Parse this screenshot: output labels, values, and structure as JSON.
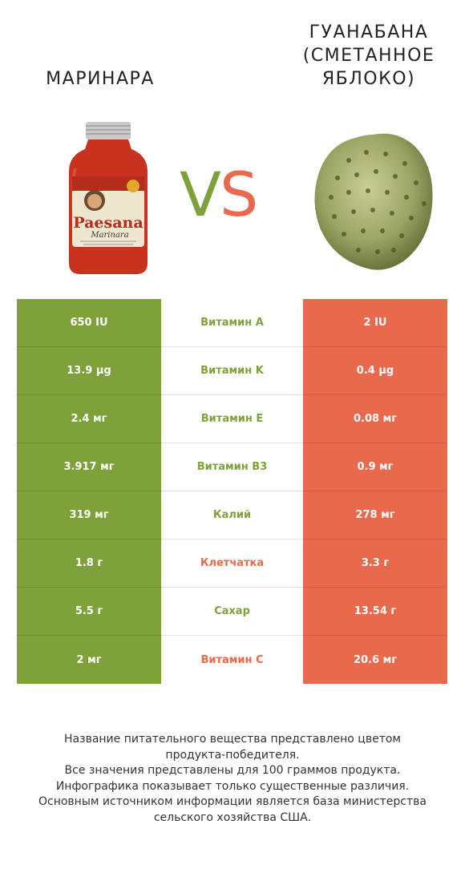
{
  "left_product": {
    "name": "МАРИНАРА",
    "color": "#7ea13a"
  },
  "right_product": {
    "name_lines": [
      "ГУАНАБАНА",
      "(СМЕТАННОЕ",
      "ЯБЛОКО)"
    ],
    "color": "#e8694b"
  },
  "vs": {
    "v": "V",
    "s": "S"
  },
  "jar_label": {
    "brand": "Paesana",
    "sub": "Marinara"
  },
  "rows": [
    {
      "left": "650 IU",
      "nutrient": "Витамин A",
      "right": "2 IU",
      "winner": "left"
    },
    {
      "left": "13.9 µg",
      "nutrient": "Витамин K",
      "right": "0.4 µg",
      "winner": "left"
    },
    {
      "left": "2.4 мг",
      "nutrient": "Витамин E",
      "right": "0.08 мг",
      "winner": "left"
    },
    {
      "left": "3.917 мг",
      "nutrient": "Витамин B3",
      "right": "0.9 мг",
      "winner": "left"
    },
    {
      "left": "319 мг",
      "nutrient": "Калий",
      "right": "278 мг",
      "winner": "left"
    },
    {
      "left": "1.8 г",
      "nutrient": "Клетчатка",
      "right": "3.3 г",
      "winner": "right"
    },
    {
      "left": "5.5 г",
      "nutrient": "Сахар",
      "right": "13.54 г",
      "winner": "left"
    },
    {
      "left": "2 мг",
      "nutrient": "Витамин C",
      "right": "20.6 мг",
      "winner": "right"
    }
  ],
  "footer": [
    "Название питательного вещества представлено цветом",
    "продукта-победителя.",
    "Все значения представлены для 100 граммов продукта.",
    "Инфографика показывает только существенные различия.",
    "Основным источником информации является база министерства",
    "сельского хозяйства США."
  ]
}
